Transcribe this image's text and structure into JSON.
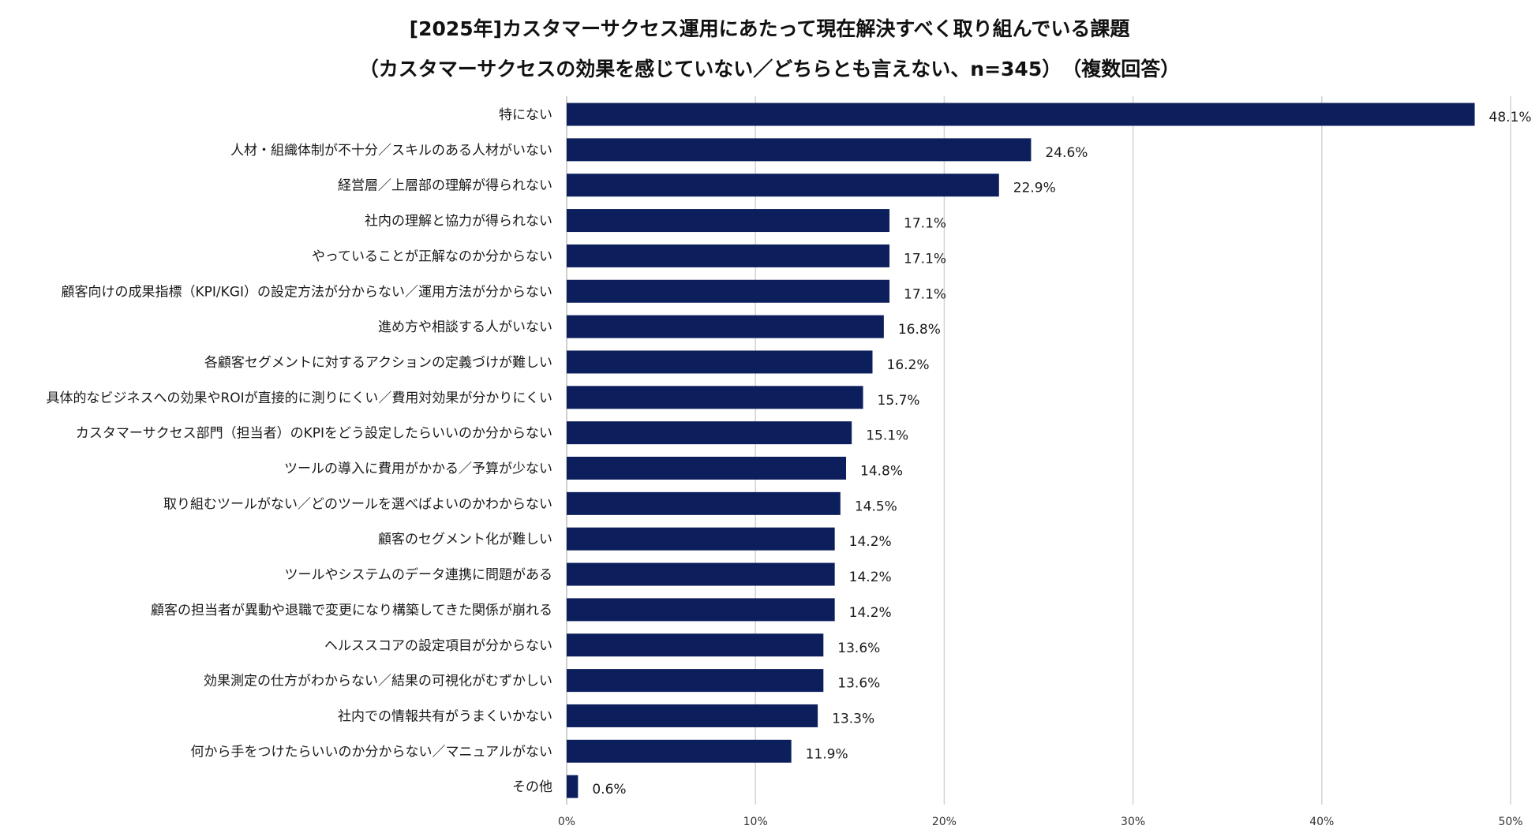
{
  "colors": {
    "bar": "#0c1f5c",
    "grid": "#d3d3d3",
    "text": "#1a1a1a"
  },
  "chart_data": {
    "type": "bar",
    "orientation": "horizontal",
    "title": "[2025年]カスタマーサクセス運用にあたって現在解決すべく取り組んでいる課題",
    "subtitle": "（カスタマーサクセスの効果を感じていない／どちらとも言えない、n=345）　（複数回答）",
    "xlabel": "",
    "ylabel": "",
    "xlim": [
      0,
      50
    ],
    "grid": true,
    "ticks": [
      "0%",
      "10%",
      "20%",
      "30%",
      "40%",
      "50%"
    ],
    "tick_values": [
      0,
      10,
      20,
      30,
      40,
      50
    ],
    "categories": [
      "特にない",
      "人材・組織体制が不十分／スキルのある人材がいない",
      "経営層／上層部の理解が得られない",
      "社内の理解と協力が得られない",
      "やっていることが正解なのか分からない",
      "顧客向けの成果指標（KPI/KGI）の設定方法が分からない／運用方法が分からない",
      "進め方や相談する人がいない",
      "各顧客セグメントに対するアクションの定義づけが難しい",
      "具体的なビジネスへの効果やROIが直接的に測りにくい／費用対効果が分かりにくい",
      "カスタマーサクセス部門（担当者）のKPIをどう設定したらいいのか分からない",
      "ツールの導入に費用がかかる／予算が少ない",
      "取り組むツールがない／どのツールを選べばよいのかわからない",
      "顧客のセグメント化が難しい",
      "ツールやシステムのデータ連携に問題がある",
      "顧客の担当者が異動や退職で変更になり構築してきた関係が崩れる",
      "ヘルススコアの設定項目が分からない",
      "効果測定の仕方がわからない／結果の可視化がむずかしい",
      "社内での情報共有がうまくいかない",
      "何から手をつけたらいいのか分からない／マニュアルがない",
      "その他"
    ],
    "values": [
      48.1,
      24.6,
      22.9,
      17.1,
      17.1,
      17.1,
      16.8,
      16.2,
      15.7,
      15.1,
      14.8,
      14.5,
      14.2,
      14.2,
      14.2,
      13.6,
      13.6,
      13.3,
      11.9,
      0.6
    ],
    "value_labels": [
      "48.1%",
      "24.6%",
      "22.9%",
      "17.1%",
      "17.1%",
      "17.1%",
      "16.8%",
      "16.2%",
      "15.7%",
      "15.1%",
      "14.8%",
      "14.5%",
      "14.2%",
      "14.2%",
      "14.2%",
      "13.6%",
      "13.6%",
      "13.3%",
      "11.9%",
      "0.6%"
    ]
  }
}
